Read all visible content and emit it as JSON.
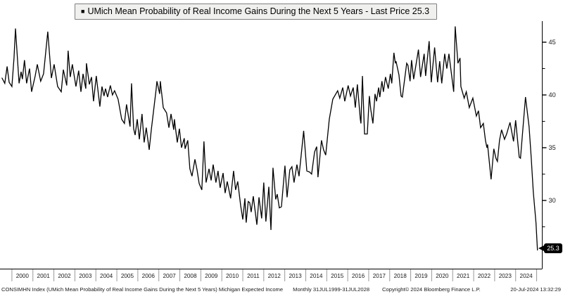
{
  "legend": {
    "marker": "■",
    "label": "UMich Mean Probability of Real Income Gains During the Next 5 Years - Last Price 25.3"
  },
  "footer": {
    "ticker_text": "CONSIMHN Index (UMich Mean Probability of Real Income Gains During the Next 5 Years) Michigan Expected Income",
    "period_text": "Monthly 31JUL1999-31JUL2028",
    "copyright_text": "Copyright© 2024 Bloomberg Finance L.P.",
    "timestamp": "20-Jul-2024 13:32:29"
  },
  "chart_data": {
    "type": "line",
    "title": "UMich Mean Probability of Real Income Gains During the Next 5 Years",
    "last_price": 25.3,
    "last_price_label": "25.3",
    "line_color": "#000000",
    "axis_color": "#000000",
    "separator_color": "#999999",
    "tick_label_color": "#1a1a1a",
    "legend_position": "top",
    "grid": false,
    "x_range": [
      1999.5,
      2025.25
    ],
    "ylim": [
      23.5,
      46.7
    ],
    "y_ticks_major": [
      30,
      35,
      40,
      45
    ],
    "y_ticks_minor": [
      27.5,
      32.5,
      37.5,
      42.5
    ],
    "x_year_labels": [
      "2000",
      "2001",
      "2002",
      "2003",
      "2004",
      "2005",
      "2006",
      "2007",
      "2008",
      "2009",
      "2010",
      "2011",
      "2012",
      "2013",
      "2014",
      "2015",
      "2016",
      "2017",
      "2018",
      "2019",
      "2020",
      "2021",
      "2022",
      "2023",
      "2024"
    ],
    "x": [
      1999.53,
      1999.66,
      1999.77,
      1999.87,
      2000.0,
      2000.1,
      2000.17,
      2000.34,
      2000.44,
      2000.5,
      2000.6,
      2000.7,
      2000.84,
      2000.94,
      2001.11,
      2001.21,
      2001.37,
      2001.51,
      2001.71,
      2001.88,
      2002.01,
      2002.18,
      2002.35,
      2002.45,
      2002.61,
      2002.68,
      2002.78,
      2002.88,
      2003.05,
      2003.18,
      2003.29,
      2003.39,
      2003.52,
      2003.55,
      2003.69,
      2003.79,
      2003.89,
      2004.02,
      2004.19,
      2004.29,
      2004.39,
      2004.46,
      2004.56,
      2004.69,
      2004.79,
      2004.89,
      2005.06,
      2005.23,
      2005.36,
      2005.46,
      2005.63,
      2005.7,
      2005.8,
      2005.87,
      2005.97,
      2006.07,
      2006.2,
      2006.3,
      2006.4,
      2006.54,
      2006.64,
      2006.87,
      2006.91,
      2007.04,
      2007.07,
      2007.21,
      2007.37,
      2007.48,
      2007.58,
      2007.71,
      2007.74,
      2007.88,
      2007.98,
      2008.08,
      2008.21,
      2008.25,
      2008.38,
      2008.48,
      2008.58,
      2008.72,
      2008.82,
      2008.92,
      2009.05,
      2009.15,
      2009.25,
      2009.39,
      2009.49,
      2009.59,
      2009.72,
      2009.82,
      2009.92,
      2010.06,
      2010.16,
      2010.26,
      2010.42,
      2010.56,
      2010.66,
      2010.76,
      2010.9,
      2011.0,
      2011.1,
      2011.16,
      2011.26,
      2011.33,
      2011.4,
      2011.5,
      2011.67,
      2011.77,
      2011.9,
      2012.0,
      2012.1,
      2012.24,
      2012.34,
      2012.44,
      2012.57,
      2012.64,
      2012.74,
      2012.84,
      2013.01,
      2013.11,
      2013.24,
      2013.34,
      2013.44,
      2013.58,
      2013.68,
      2013.9,
      2014.05,
      2014.18,
      2014.28,
      2014.42,
      2014.52,
      2014.58,
      2014.75,
      2014.85,
      2014.95,
      2015.12,
      2015.29,
      2015.52,
      2015.62,
      2015.76,
      2015.86,
      2016.02,
      2016.13,
      2016.26,
      2016.36,
      2016.46,
      2016.6,
      2016.63,
      2016.7,
      2016.8,
      2016.93,
      2017.03,
      2017.1,
      2017.2,
      2017.3,
      2017.37,
      2017.47,
      2017.53,
      2017.63,
      2017.7,
      2017.8,
      2017.93,
      2018.03,
      2018.1,
      2018.2,
      2018.27,
      2018.3,
      2018.44,
      2018.54,
      2018.6,
      2018.81,
      2018.87,
      2018.97,
      2019.04,
      2019.14,
      2019.37,
      2019.47,
      2019.64,
      2019.71,
      2019.88,
      2019.98,
      2020.14,
      2020.28,
      2020.38,
      2020.48,
      2020.62,
      2020.72,
      2020.82,
      2021.05,
      2021.12,
      2021.25,
      2021.35,
      2021.39,
      2021.55,
      2021.65,
      2021.79,
      2021.96,
      2022.13,
      2022.23,
      2022.33,
      2022.46,
      2022.56,
      2022.63,
      2022.66,
      2022.83,
      2022.96,
      2023.06,
      2023.13,
      2023.23,
      2023.33,
      2023.47,
      2023.57,
      2023.73,
      2023.9,
      2024.0,
      2024.17,
      2024.23,
      2024.47,
      2024.64,
      2024.74,
      2024.84,
      2024.97,
      2025.04
    ],
    "y": [
      41.6,
      41.1,
      42.7,
      41.2,
      40.8,
      43.5,
      46.3,
      41.1,
      42.2,
      41.5,
      43.3,
      41.1,
      42.5,
      40.3,
      41.8,
      42.9,
      41.3,
      42.0,
      46.0,
      41.6,
      42.9,
      40.8,
      40.3,
      42.4,
      40.9,
      44.2,
      41.7,
      42.9,
      40.8,
      42.3,
      40.3,
      42.0,
      40.6,
      43.0,
      41.0,
      41.7,
      39.4,
      41.8,
      38.9,
      40.8,
      39.9,
      40.6,
      39.8,
      40.9,
      40.0,
      40.4,
      39.6,
      37.7,
      37.3,
      39.1,
      37.0,
      41.1,
      36.8,
      36.2,
      37.7,
      35.8,
      38.2,
      35.5,
      36.9,
      34.8,
      36.7,
      40.5,
      41.3,
      40.1,
      41.3,
      38.8,
      38.3,
      36.9,
      38.2,
      36.7,
      37.7,
      35.5,
      36.8,
      35.0,
      35.9,
      34.9,
      35.7,
      33.0,
      32.3,
      33.9,
      32.9,
      31.6,
      31.0,
      35.6,
      31.7,
      33.0,
      31.9,
      33.4,
      31.7,
      32.8,
      31.2,
      32.6,
      30.7,
      31.8,
      30.2,
      32.8,
      31.0,
      31.8,
      29.5,
      28.2,
      30.2,
      27.9,
      29.9,
      29.8,
      28.9,
      30.4,
      27.7,
      30.3,
      28.3,
      31.7,
      28.0,
      31.3,
      27.2,
      33.1,
      30.1,
      30.6,
      29.3,
      29.4,
      33.3,
      30.3,
      32.9,
      33.2,
      31.7,
      33.4,
      32.3,
      36.6,
      32.8,
      32.7,
      32.5,
      34.6,
      35.1,
      32.2,
      35.7,
      34.8,
      34.3,
      37.7,
      39.6,
      40.4,
      39.7,
      40.7,
      39.4,
      40.9,
      39.9,
      40.7,
      38.8,
      41.0,
      37.7,
      37.3,
      41.8,
      36.3,
      36.3,
      39.9,
      38.6,
      37.3,
      40.1,
      39.4,
      40.7,
      39.8,
      41.3,
      40.3,
      41.7,
      40.6,
      42.0,
      41.1,
      44.0,
      43.0,
      43.2,
      41.9,
      39.9,
      39.8,
      43.0,
      42.8,
      41.3,
      43.3,
      41.5,
      44.3,
      41.7,
      43.9,
      41.8,
      45.1,
      41.2,
      44.5,
      41.2,
      43.2,
      41.1,
      43.9,
      42.5,
      43.9,
      40.3,
      46.5,
      43.0,
      43.5,
      40.8,
      39.7,
      40.3,
      38.8,
      39.7,
      38.0,
      38.5,
      36.9,
      37.3,
      35.7,
      35.0,
      35.3,
      32.0,
      34.9,
      34.0,
      33.7,
      35.7,
      36.7,
      35.8,
      36.3,
      37.4,
      35.6,
      37.6,
      34.1,
      34.0,
      39.8,
      37.0,
      34.1,
      30.8,
      27.9,
      25.3
    ]
  }
}
